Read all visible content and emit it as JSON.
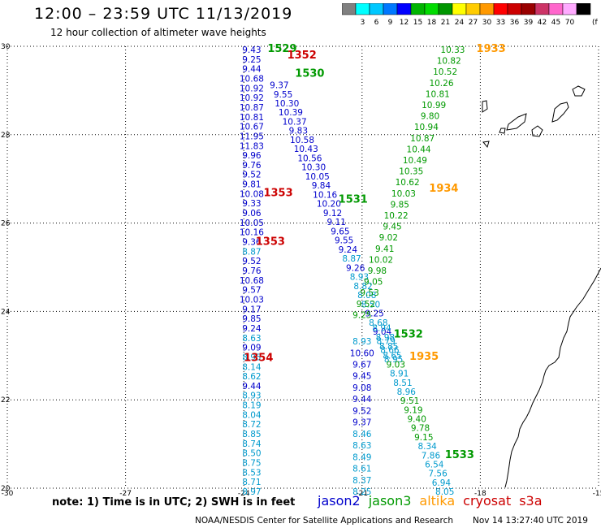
{
  "header": {
    "title": "12:00 – 23:59 UTC 11/13/2019",
    "subtitle": "12 hour collection of altimeter wave heights"
  },
  "colorbar": {
    "unit": "(ft)",
    "bins": [
      {
        "label": "",
        "color": "#808080"
      },
      {
        "label": "3",
        "color": "#00ffff"
      },
      {
        "label": "6",
        "color": "#00c8ff"
      },
      {
        "label": "9",
        "color": "#0078ff"
      },
      {
        "label": "12",
        "color": "#0000ff"
      },
      {
        "label": "15",
        "color": "#00b400"
      },
      {
        "label": "18",
        "color": "#00dc00"
      },
      {
        "label": "21",
        "color": "#009600"
      },
      {
        "label": "24",
        "color": "#ffff00"
      },
      {
        "label": "27",
        "color": "#ffcc00"
      },
      {
        "label": "30",
        "color": "#ff9900"
      },
      {
        "label": "33",
        "color": "#ff0000"
      },
      {
        "label": "36",
        "color": "#cc0000"
      },
      {
        "label": "39",
        "color": "#990000"
      },
      {
        "label": "42",
        "color": "#cc3366"
      },
      {
        "label": "45",
        "color": "#ff66cc"
      },
      {
        "label": "70",
        "color": "#ffaaff"
      },
      {
        "label": "",
        "color": "#000000"
      }
    ]
  },
  "map": {
    "lon_range": [
      -30,
      -15
    ],
    "lat_range": [
      20,
      30
    ],
    "lon_ticks": [
      "-30",
      "-27",
      "-24",
      "-21",
      "-18",
      "-15"
    ],
    "lat_ticks": [
      "30",
      "28",
      "26",
      "24",
      "22",
      "20"
    ]
  },
  "satellite_colors": {
    "jason2": "#0000cc",
    "jason3": "#009900",
    "altika": "#ff9900",
    "cryosat": "#cc0000",
    "s3a": "#cc0000",
    "low": "#009acd"
  },
  "tracks": [
    {
      "sat": "jason2",
      "lon_start": -23.8,
      "lat_start": 30.0,
      "lon_end": -23.8,
      "lat_end": 20.0,
      "values": [
        "9.43",
        "9.25",
        "9.44",
        "10.68",
        "10.92",
        "10.92",
        "10.87",
        "10.81",
        "10.67",
        "11.95",
        "11.83",
        "9.96",
        "9.76",
        "9.52",
        "9.81",
        "10.08",
        "9.33",
        "9.06",
        "10.05",
        "10.16",
        "9.36",
        "8.87",
        "9.52",
        "9.76",
        "10.68",
        "9.57",
        "10.03",
        "9.17",
        "9.85",
        "9.24",
        "8.63",
        "9.09",
        "8.95",
        "8.14",
        "8.62",
        "9.44",
        "8.93",
        "8.19",
        "8.04",
        "8.72",
        "8.85",
        "8.74",
        "8.50",
        "8.75",
        "8.53",
        "8.71",
        "8.97"
      ]
    },
    {
      "sat": "jason2",
      "lon_start": -23.1,
      "lat_start": 29.2,
      "lon_end": -20.2,
      "lat_end": 23.0,
      "values": [
        "9.37",
        "9.55",
        "10.30",
        "10.39",
        "10.37",
        "9.83",
        "10.58",
        "10.43",
        "10.56",
        "10.30",
        "10.05",
        "9.84",
        "10.16",
        "10.20",
        "9.12",
        "9.11",
        "9.65",
        "9.55",
        "9.24",
        "8.87",
        "9.26",
        "8.93",
        "8.82",
        "8.08",
        "8.50",
        "9.25",
        "8.68",
        "9.04",
        "8.79",
        "8.66",
        "8.95"
      ]
    },
    {
      "sat": "jason2",
      "lon_start": -21.0,
      "lat_start": 23.4,
      "lon_end": -21.0,
      "lat_end": 20.0,
      "values": [
        "8.93",
        "10.60",
        "9.67",
        "9.45",
        "9.08",
        "9.44",
        "9.52",
        "9.37",
        "8.46",
        "8.63",
        "8.49",
        "8.61",
        "8.37",
        "8.25"
      ]
    },
    {
      "sat": "jason3",
      "lon_start": -18.7,
      "lat_start": 30.0,
      "lon_end": -21.0,
      "lat_end": 24.0,
      "values": [
        "10.33",
        "10.82",
        "10.52",
        "10.26",
        "10.81",
        "10.99",
        "9.80",
        "10.94",
        "10.87",
        "10.44",
        "10.49",
        "10.35",
        "10.62",
        "10.03",
        "9.85",
        "10.22",
        "9.45",
        "9.02",
        "9.41",
        "10.02",
        "9.98",
        "9.05",
        "9.53",
        "9.52",
        "9.25"
      ]
    },
    {
      "sat": "jason3",
      "lon_start": -20.5,
      "lat_start": 23.7,
      "lon_end": -18.9,
      "lat_end": 20.0,
      "values": [
        "8.94",
        "8.98",
        "8.85",
        "8.65",
        "9.03",
        "8.91",
        "8.51",
        "8.96",
        "9.51",
        "9.19",
        "9.40",
        "9.78",
        "9.15",
        "8.34",
        "7.86",
        "6.54",
        "7.56",
        "6.94",
        "8.05"
      ]
    }
  ],
  "pass_labels": [
    {
      "text": "1529",
      "sat": "jason3",
      "lon": -23.4,
      "lat": 29.96
    },
    {
      "text": "1352",
      "sat": "cryosat",
      "lon": -22.9,
      "lat": 29.82
    },
    {
      "text": "1530",
      "sat": "jason3",
      "lon": -22.7,
      "lat": 29.4
    },
    {
      "text": "1353",
      "sat": "cryosat",
      "lon": -23.5,
      "lat": 26.7
    },
    {
      "text": "1531",
      "sat": "jason3",
      "lon": -21.6,
      "lat": 26.55
    },
    {
      "text": "1353",
      "sat": "cryosat",
      "lon": -23.7,
      "lat": 25.6
    },
    {
      "text": "1532",
      "sat": "jason3",
      "lon": -20.2,
      "lat": 23.5
    },
    {
      "text": "1354",
      "sat": "cryosat",
      "lon": -24.0,
      "lat": 22.97
    },
    {
      "text": "1533",
      "sat": "jason3",
      "lon": -18.9,
      "lat": 20.77
    },
    {
      "text": "1933",
      "sat": "altika",
      "lon": -18.1,
      "lat": 29.96
    },
    {
      "text": "1934",
      "sat": "altika",
      "lon": -19.3,
      "lat": 26.8
    },
    {
      "text": "1935",
      "sat": "altika",
      "lon": -19.8,
      "lat": 23.0
    }
  ],
  "footer": {
    "note": "note: 1) Time is in UTC; 2) SWH is in feet",
    "legend": [
      "jason2",
      "jason3",
      "altika",
      "cryosat",
      "s3a"
    ],
    "credit": "NOAA/NESDIS Center for Satellite Applications and Research",
    "timestamp": "Nov 14 13:27:40 UTC 2019"
  }
}
